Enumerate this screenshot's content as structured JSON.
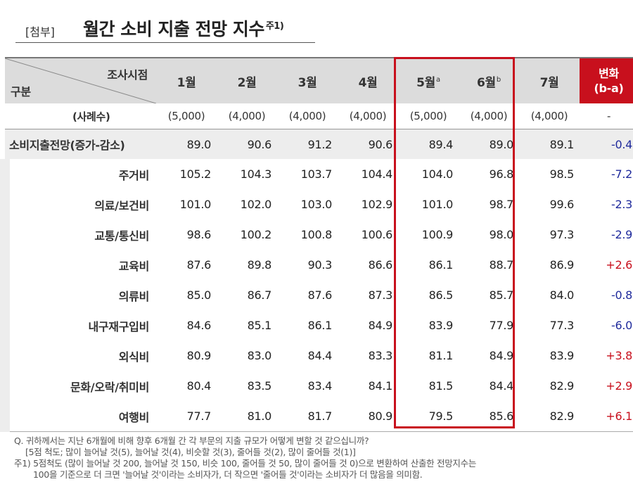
{
  "title": {
    "tag": "[첨부]",
    "main": "월간 소비 지출 전망 지수",
    "sup": "주1)"
  },
  "header": {
    "corner_top": "조사시점",
    "corner_bottom": "구분",
    "months": [
      {
        "label": "1월",
        "sup": ""
      },
      {
        "label": "2월",
        "sup": ""
      },
      {
        "label": "3월",
        "sup": ""
      },
      {
        "label": "4월",
        "sup": ""
      },
      {
        "label": "5월",
        "sup": "a"
      },
      {
        "label": "6월",
        "sup": "b"
      },
      {
        "label": "7월",
        "sup": ""
      }
    ],
    "change_line1": "변화",
    "change_line2": "(b-a)"
  },
  "sample": {
    "label": "(사례수)",
    "values": [
      "(5,000)",
      "(4,000)",
      "(4,000)",
      "(4,000)",
      "(5,000)",
      "(4,000)",
      "(4,000)"
    ],
    "change": "-"
  },
  "rows": [
    {
      "label": "소비지출전망(증가-감소)",
      "values": [
        "89.0",
        "90.6",
        "91.2",
        "90.6",
        "89.4",
        "89.0",
        "89.1"
      ],
      "change": "-0.4"
    },
    {
      "label": "주거비",
      "values": [
        "105.2",
        "104.3",
        "103.7",
        "104.4",
        "104.0",
        "96.8",
        "98.5"
      ],
      "change": "-7.2"
    },
    {
      "label": "의료/보건비",
      "values": [
        "101.0",
        "102.0",
        "103.0",
        "102.9",
        "101.0",
        "98.7",
        "99.6"
      ],
      "change": "-2.3"
    },
    {
      "label": "교통/통신비",
      "values": [
        "98.6",
        "100.2",
        "100.8",
        "100.6",
        "100.9",
        "98.0",
        "97.3"
      ],
      "change": "-2.9"
    },
    {
      "label": "교육비",
      "values": [
        "87.6",
        "89.8",
        "90.3",
        "86.6",
        "86.1",
        "88.7",
        "86.9"
      ],
      "change": "+2.6"
    },
    {
      "label": "의류비",
      "values": [
        "85.0",
        "86.7",
        "87.6",
        "87.3",
        "86.5",
        "85.7",
        "84.0"
      ],
      "change": "-0.8"
    },
    {
      "label": "내구재구입비",
      "values": [
        "84.6",
        "85.1",
        "86.1",
        "84.9",
        "83.9",
        "77.9",
        "77.3"
      ],
      "change": "-6.0"
    },
    {
      "label": "외식비",
      "values": [
        "80.9",
        "83.0",
        "84.4",
        "83.3",
        "81.1",
        "84.9",
        "83.9"
      ],
      "change": "+3.8"
    },
    {
      "label": "문화/오락/취미비",
      "values": [
        "80.4",
        "83.5",
        "83.4",
        "84.1",
        "81.5",
        "84.4",
        "82.9"
      ],
      "change": "+2.9"
    },
    {
      "label": "여행비",
      "values": [
        "77.7",
        "81.0",
        "81.7",
        "80.9",
        "79.5",
        "85.6",
        "82.9"
      ],
      "change": "+6.1"
    }
  ],
  "notes": {
    "question": "Q. 귀하께서는 지난 6개월에 비해 향후 6개월 간 각 부문의 지출 규모가 어떻게 변할 것 같으십니까?",
    "scale": "[5점 척도; 많이 늘어날 것(5), 늘어날 것(4), 비슷할 것(3), 줄어들 것(2), 많이 줄어들 것(1)]",
    "footnote1": "주1) 5점척도 (많이 늘어날 것 200, 늘어날 것 150, 비슷 100, 줄어들 것 50, 많이 줄어들 것 0)으로 변환하여 산출한 전망지수는",
    "footnote2": "100을 기준으로 더 크면 '늘어날 것'이라는 소비자가, 더 작으면 '줄어들 것'이라는 소비자가 더 많음을 의미함."
  },
  "colors": {
    "accent_red": "#c8101d",
    "negative_blue": "#1f2a9c",
    "header_gray": "#dcdcdc",
    "total_row_gray": "#ededed"
  }
}
